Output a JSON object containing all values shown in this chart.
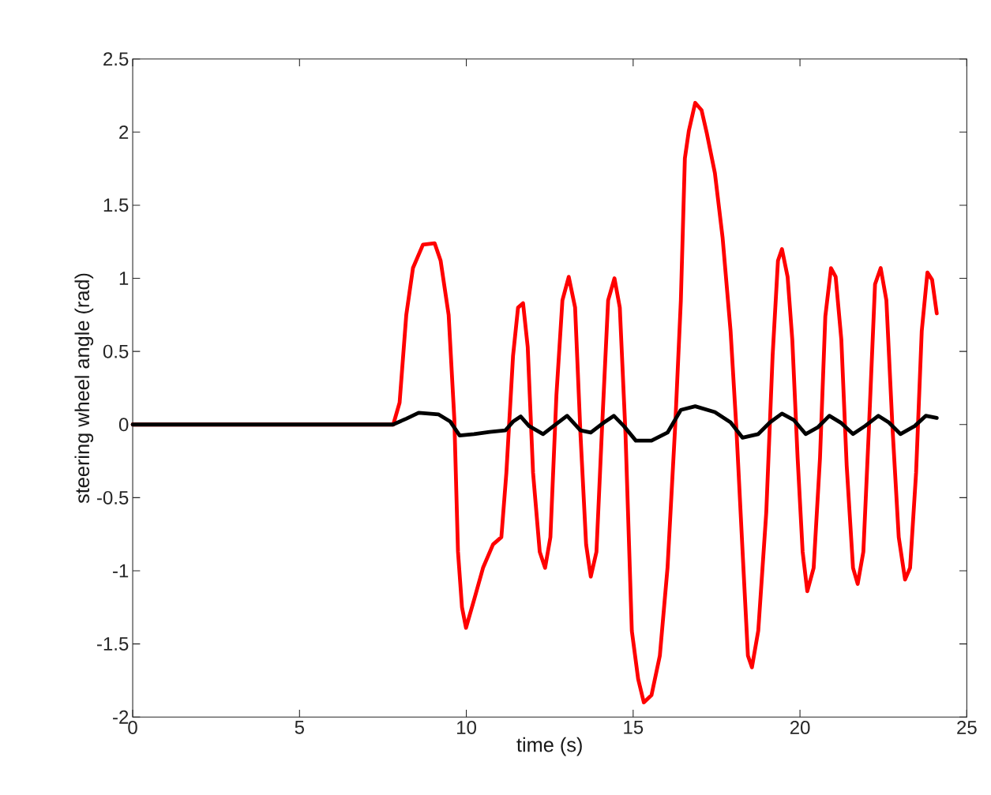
{
  "chart_data": {
    "type": "line",
    "xlabel": "time (s)",
    "ylabel": "steering wheel angle (rad)",
    "xlim": [
      0,
      25
    ],
    "ylim": [
      -2,
      2.5
    ],
    "xticks": [
      0,
      5,
      10,
      15,
      20,
      25
    ],
    "yticks": [
      -2,
      -1.5,
      -1,
      -0.5,
      0,
      0.5,
      1,
      1.5,
      2,
      2.5
    ],
    "line_style": "solid",
    "series": [
      {
        "color": "#ff0000",
        "x": [
          0,
          7.81,
          8.0,
          8.2,
          8.4,
          8.7,
          9.05,
          9.23,
          9.47,
          9.64,
          9.75,
          9.87,
          9.99,
          10.23,
          10.5,
          10.8,
          11.05,
          11.2,
          11.4,
          11.55,
          11.7,
          11.84,
          12.0,
          12.2,
          12.36,
          12.52,
          12.7,
          12.88,
          13.07,
          13.26,
          13.42,
          13.59,
          13.73,
          13.9,
          14.06,
          14.25,
          14.44,
          14.6,
          14.77,
          14.96,
          15.15,
          15.32,
          15.55,
          15.8,
          16.03,
          16.26,
          16.43,
          16.55,
          16.67,
          16.86,
          17.05,
          17.21,
          17.45,
          17.68,
          17.92,
          18.09,
          18.28,
          18.44,
          18.56,
          18.75,
          18.99,
          19.18,
          19.34,
          19.46,
          19.63,
          19.77,
          19.93,
          20.08,
          20.22,
          20.41,
          20.6,
          20.76,
          20.93,
          21.07,
          21.24,
          21.4,
          21.59,
          21.73,
          21.9,
          22.06,
          22.25,
          22.42,
          22.59,
          22.77,
          22.96,
          23.15,
          23.3,
          23.48,
          23.65,
          23.82,
          23.96,
          24.1
        ],
        "values": [
          0,
          0,
          0.15,
          0.75,
          1.07,
          1.23,
          1.24,
          1.12,
          0.75,
          0.04,
          -0.87,
          -1.25,
          -1.39,
          -1.2,
          -0.98,
          -0.82,
          -0.77,
          -0.33,
          0.47,
          0.8,
          0.83,
          0.53,
          -0.33,
          -0.87,
          -0.98,
          -0.77,
          0.2,
          0.85,
          1.01,
          0.8,
          -0.06,
          -0.82,
          -1.04,
          -0.87,
          -0.06,
          0.85,
          1.0,
          0.8,
          -0.06,
          -1.41,
          -1.74,
          -1.9,
          -1.85,
          -1.58,
          -0.98,
          -0.01,
          0.85,
          1.82,
          2.01,
          2.2,
          2.15,
          1.99,
          1.72,
          1.28,
          0.64,
          -0.01,
          -0.87,
          -1.58,
          -1.66,
          -1.41,
          -0.6,
          0.47,
          1.12,
          1.2,
          1.01,
          0.58,
          -0.23,
          -0.87,
          -1.14,
          -0.98,
          -0.23,
          0.74,
          1.07,
          1.01,
          0.58,
          -0.28,
          -0.98,
          -1.09,
          -0.87,
          -0.06,
          0.96,
          1.07,
          0.85,
          -0.01,
          -0.77,
          -1.06,
          -0.98,
          -0.33,
          0.64,
          1.04,
          0.99,
          0.76
        ]
      },
      {
        "color": "#000000",
        "x": [
          0,
          7.8,
          8.2,
          8.57,
          9.16,
          9.52,
          9.8,
          10.23,
          10.7,
          11.17,
          11.4,
          11.63,
          11.88,
          12.3,
          12.7,
          13.02,
          13.42,
          13.73,
          14.13,
          14.42,
          14.72,
          15.08,
          15.55,
          16.03,
          16.43,
          16.86,
          17.45,
          17.92,
          18.28,
          18.75,
          19.1,
          19.46,
          19.82,
          20.17,
          20.53,
          20.88,
          21.24,
          21.59,
          21.95,
          22.35,
          22.66,
          23.01,
          23.44,
          23.77,
          24.1
        ],
        "values": [
          0,
          0,
          0.04,
          0.08,
          0.07,
          0.02,
          -0.075,
          -0.065,
          -0.05,
          -0.04,
          0.02,
          0.055,
          -0.01,
          -0.065,
          0.005,
          0.06,
          -0.04,
          -0.055,
          0.015,
          0.06,
          -0.01,
          -0.11,
          -0.11,
          -0.055,
          0.1,
          0.125,
          0.085,
          0.015,
          -0.09,
          -0.065,
          0.015,
          0.075,
          0.03,
          -0.065,
          -0.02,
          0.06,
          0.01,
          -0.065,
          -0.01,
          0.06,
          0.015,
          -0.065,
          -0.01,
          0.06,
          0.045
        ]
      }
    ]
  }
}
